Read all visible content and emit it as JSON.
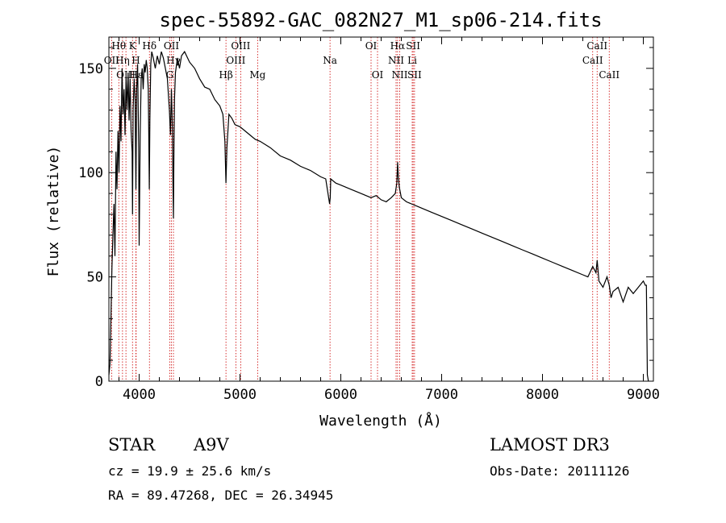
{
  "chart_data": {
    "type": "line",
    "title": "spec-55892-GAC_082N27_M1_sp06-214.fits",
    "xlabel": "Wavelength (Å)",
    "ylabel": "Flux (relative)",
    "xlim": [
      3700,
      9100
    ],
    "ylim": [
      0,
      165
    ],
    "x_ticks": [
      4000,
      5000,
      6000,
      7000,
      8000,
      9000
    ],
    "y_ticks": [
      0,
      50,
      100,
      150
    ],
    "series": [
      {
        "name": "flux",
        "x": [
          3700,
          3710,
          3720,
          3730,
          3740,
          3750,
          3760,
          3770,
          3780,
          3790,
          3800,
          3810,
          3820,
          3830,
          3840,
          3850,
          3860,
          3870,
          3880,
          3890,
          3900,
          3910,
          3920,
          3930,
          3934,
          3940,
          3950,
          3960,
          3968,
          3975,
          3985,
          3995,
          4000,
          4010,
          4020,
          4030,
          4040,
          4050,
          4060,
          4070,
          4080,
          4090,
          4095,
          4101,
          4106,
          4115,
          4125,
          4140,
          4160,
          4180,
          4200,
          4220,
          4240,
          4260,
          4280,
          4300,
          4310,
          4320,
          4330,
          4335,
          4340,
          4345,
          4350,
          4360,
          4380,
          4400,
          4420,
          4450,
          4500,
          4550,
          4600,
          4650,
          4700,
          4750,
          4800,
          4830,
          4850,
          4861,
          4870,
          4890,
          4920,
          4950,
          5000,
          5050,
          5100,
          5150,
          5200,
          5300,
          5400,
          5500,
          5600,
          5700,
          5800,
          5850,
          5889,
          5895,
          5900,
          5950,
          6000,
          6100,
          6200,
          6300,
          6350,
          6400,
          6450,
          6500,
          6540,
          6555,
          6563,
          6570,
          6580,
          6600,
          6650,
          6700,
          6750,
          6800,
          6900,
          7000,
          7100,
          7200,
          7300,
          7400,
          7500,
          7600,
          7700,
          7800,
          7900,
          8000,
          8100,
          8200,
          8300,
          8400,
          8450,
          8498,
          8530,
          8542,
          8560,
          8600,
          8640,
          8662,
          8680,
          8700,
          8750,
          8800,
          8850,
          8900,
          8950,
          9000,
          9020,
          9030,
          9040,
          9050
        ],
        "y": [
          3,
          8,
          30,
          55,
          70,
          85,
          60,
          110,
          92,
          120,
          100,
          132,
          115,
          150,
          128,
          140,
          118,
          146,
          130,
          148,
          125,
          145,
          120,
          110,
          80,
          130,
          145,
          135,
          92,
          140,
          152,
          112,
          65,
          118,
          145,
          150,
          140,
          152,
          148,
          154,
          150,
          140,
          120,
          92,
          125,
          152,
          158,
          155,
          150,
          156,
          152,
          158,
          155,
          150,
          145,
          130,
          118,
          140,
          120,
          95,
          78,
          110,
          135,
          148,
          155,
          150,
          156,
          158,
          153,
          150,
          145,
          141,
          140,
          135,
          132,
          128,
          115,
          95,
          112,
          128,
          126,
          123,
          122,
          120,
          118,
          116,
          115,
          112,
          108,
          106,
          103,
          101,
          98,
          97,
          85,
          88,
          97,
          95,
          94,
          92,
          90,
          88,
          89,
          87,
          86,
          88,
          90,
          95,
          105,
          98,
          93,
          88,
          86,
          85,
          84,
          83,
          81,
          79,
          77,
          75,
          73,
          71,
          69,
          67,
          65,
          63,
          61,
          59,
          57,
          55,
          53,
          51,
          50,
          55,
          52,
          58,
          48,
          45,
          50,
          46,
          40,
          43,
          45,
          38,
          45,
          42,
          45,
          48,
          46,
          46,
          3,
          0
        ]
      }
    ],
    "line_labels": [
      {
        "label": "Hθ",
        "wavelength": 3798,
        "row": 1
      },
      {
        "label": "K",
        "wavelength": 3934,
        "row": 1
      },
      {
        "label": "Hδ",
        "wavelength": 4102,
        "row": 1
      },
      {
        "label": "OII",
        "wavelength": 4320,
        "row": 1
      },
      {
        "label": "OIII",
        "wavelength": 5007,
        "row": 1
      },
      {
        "label": "OI",
        "wavelength": 6300,
        "row": 1
      },
      {
        "label": "Hα",
        "wavelength": 6563,
        "row": 1
      },
      {
        "label": "SII",
        "wavelength": 6717,
        "row": 1
      },
      {
        "label": "CaII",
        "wavelength": 8542,
        "row": 1
      },
      {
        "label": "OII",
        "wavelength": 3727,
        "row": 2
      },
      {
        "label": "Hη",
        "wavelength": 3835,
        "row": 2
      },
      {
        "label": "H",
        "wavelength": 3968,
        "row": 2
      },
      {
        "label": "Hγ",
        "wavelength": 4340,
        "row": 2
      },
      {
        "label": "OIII",
        "wavelength": 4959,
        "row": 2
      },
      {
        "label": "Na",
        "wavelength": 5893,
        "row": 2
      },
      {
        "label": "NII",
        "wavelength": 6548,
        "row": 2
      },
      {
        "label": "Li",
        "wavelength": 6708,
        "row": 2
      },
      {
        "label": "CaII",
        "wavelength": 8498,
        "row": 2
      },
      {
        "label": "OIII",
        "wavelength": 3869,
        "row": 3
      },
      {
        "label": "Hε",
        "wavelength": 3970,
        "row": 3
      },
      {
        "label": "G",
        "wavelength": 4304,
        "row": 3
      },
      {
        "label": "Hβ",
        "wavelength": 4861,
        "row": 3
      },
      {
        "label": "Mg",
        "wavelength": 5175,
        "row": 3
      },
      {
        "label": "OI",
        "wavelength": 6364,
        "row": 3
      },
      {
        "label": "NII",
        "wavelength": 6584,
        "row": 3
      },
      {
        "label": "SII",
        "wavelength": 6731,
        "row": 3
      },
      {
        "label": "CaII",
        "wavelength": 8662,
        "row": 3
      }
    ],
    "line_color": "#cc0000"
  },
  "info": {
    "class_label": "STAR",
    "subclass": "A9V",
    "survey": "LAMOST DR3",
    "cz": "cz = 19.9 ± 25.6 km/s",
    "obs_date": "Obs-Date: 20111126",
    "coords": "RA =  89.47268, DEC =  26.34945"
  }
}
